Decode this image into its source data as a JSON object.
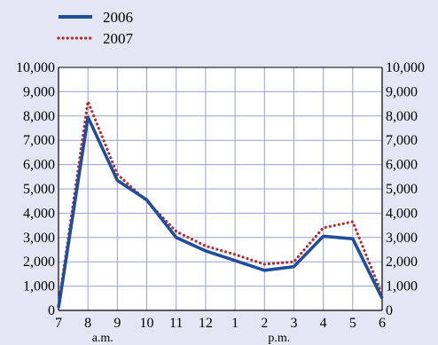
{
  "chart_data": {
    "type": "line",
    "title": "",
    "xlabel": "",
    "ylabel": "",
    "x": [
      "7",
      "8",
      "9",
      "10",
      "11",
      "12",
      "1",
      "2",
      "3",
      "4",
      "5",
      "6"
    ],
    "x_sublabels": [
      {
        "after_tick": "8",
        "text": "a.m."
      },
      {
        "after_tick": "2",
        "text": "p.m."
      }
    ],
    "ylim": [
      0,
      10000
    ],
    "y_ticks": [
      {
        "value": 0,
        "label": "0"
      },
      {
        "value": 1000,
        "label": "1,000"
      },
      {
        "value": 2000,
        "label": "2,000"
      },
      {
        "value": 3000,
        "label": "3,000"
      },
      {
        "value": 4000,
        "label": "4,000"
      },
      {
        "value": 5000,
        "label": "5,000"
      },
      {
        "value": 6000,
        "label": "6,000"
      },
      {
        "value": 7000,
        "label": "7,000"
      },
      {
        "value": 8000,
        "label": "8,000"
      },
      {
        "value": 9000,
        "label": "9,000"
      },
      {
        "value": 10000,
        "label": "10,000"
      }
    ],
    "grid": true,
    "legend_position": "top-left",
    "series": [
      {
        "name": "2006",
        "color": "#1f4e9e",
        "style": "solid",
        "values": [
          100,
          7950,
          5350,
          4550,
          3000,
          2450,
          2050,
          1650,
          1800,
          3050,
          2950,
          500
        ]
      },
      {
        "name": "2007",
        "color": "#b03030",
        "style": "dotted",
        "values": [
          200,
          8600,
          5600,
          4500,
          3250,
          2650,
          2300,
          1900,
          2000,
          3400,
          3650,
          650
        ]
      }
    ]
  }
}
